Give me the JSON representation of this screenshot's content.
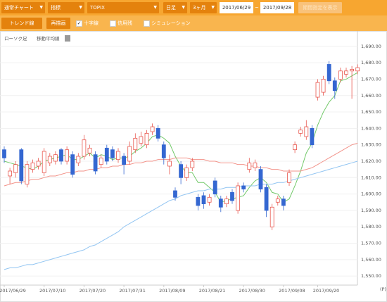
{
  "toolbar": {
    "chart_type": "通常チャート",
    "indicator": "指標",
    "symbol": "TOPIX",
    "period": "日足",
    "range": "3ヶ月",
    "date_from": "2017/06/29",
    "date_sep": "~",
    "date_to": "2017/09/28",
    "apply": "期間指定を表示"
  },
  "toolbar2": {
    "trend": "トレンド線",
    "redraw": "再描画",
    "options": [
      {
        "label": "十字線",
        "checked": true
      },
      {
        "label": "信用残",
        "checked": false
      },
      {
        "label": "シミュレーション",
        "checked": false
      }
    ]
  },
  "chart_data": {
    "type": "candlestick",
    "legend": [
      "ローソク足",
      "移動平均線"
    ],
    "unit_label": "(P)",
    "categories": [
      "2017/06/29",
      null,
      null,
      null,
      null,
      null,
      null,
      "2017/07/10",
      null,
      null,
      null,
      null,
      null,
      null,
      "2017/07/20",
      null,
      null,
      null,
      null,
      null,
      null,
      "2017/07/31",
      null,
      null,
      null,
      null,
      null,
      null,
      "2017/08/09",
      null,
      null,
      null,
      null,
      null,
      null,
      "2017/08/21",
      null,
      null,
      null,
      null,
      null,
      null,
      "2017/08/30",
      null,
      null,
      null,
      null,
      null,
      null,
      "2017/09/08",
      null,
      null,
      null,
      null,
      null,
      "2017/09/20",
      null,
      null,
      null,
      null,
      null,
      null,
      null
    ],
    "open": [
      1627,
      1611,
      1613,
      1627,
      1606,
      1615,
      1617,
      1613,
      1619,
      1620,
      1627,
      1620,
      1624,
      1619,
      1623,
      1625,
      1624,
      1618,
      1628,
      1627,
      1621,
      1623,
      1620,
      1627,
      1631,
      1630,
      1638,
      1640,
      1630,
      1617,
      1602,
      1618,
      1610,
      1616,
      1598,
      1599,
      1595,
      1608,
      1597,
      1594,
      1601,
      1590,
      1605,
      1615,
      1616,
      1615,
      1604,
      1580,
      1595,
      1597,
      1607,
      1627,
      1637,
      1635,
      1640,
      1659,
      1662,
      1679,
      1669,
      1670,
      1673,
      1675,
      1675
    ],
    "high": [
      1629,
      1616,
      1620,
      1628,
      1620,
      1621,
      1622,
      1628,
      1625,
      1626,
      1628,
      1629,
      1626,
      1625,
      1636,
      1630,
      1626,
      1624,
      1630,
      1629,
      1628,
      1625,
      1632,
      1637,
      1638,
      1639,
      1643,
      1642,
      1632,
      1624,
      1604,
      1620,
      1618,
      1622,
      1600,
      1601,
      1600,
      1610,
      1599,
      1599,
      1603,
      1607,
      1607,
      1622,
      1621,
      1617,
      1606,
      1594,
      1599,
      1599,
      1615,
      1632,
      1641,
      1645,
      1642,
      1670,
      1672,
      1681,
      1671,
      1677,
      1677,
      1678,
      1679
    ],
    "low": [
      1619,
      1606,
      1610,
      1606,
      1604,
      1613,
      1615,
      1611,
      1617,
      1618,
      1618,
      1618,
      1610,
      1617,
      1621,
      1623,
      1612,
      1616,
      1618,
      1620,
      1619,
      1612,
      1618,
      1625,
      1629,
      1628,
      1636,
      1632,
      1618,
      1612,
      1596,
      1606,
      1608,
      1614,
      1590,
      1591,
      1593,
      1598,
      1589,
      1592,
      1594,
      1588,
      1601,
      1613,
      1614,
      1601,
      1586,
      1578,
      1593,
      1590,
      1605,
      1625,
      1635,
      1633,
      1628,
      1657,
      1660,
      1667,
      1658,
      1668,
      1671,
      1658,
      1673
    ],
    "close": [
      1622,
      1614,
      1618,
      1608,
      1618,
      1619,
      1620,
      1626,
      1623,
      1624,
      1620,
      1627,
      1612,
      1623,
      1633,
      1628,
      1614,
      1622,
      1620,
      1622,
      1626,
      1618,
      1629,
      1634,
      1635,
      1637,
      1641,
      1634,
      1622,
      1620,
      1598,
      1610,
      1616,
      1620,
      1593,
      1594,
      1598,
      1600,
      1592,
      1597,
      1596,
      1605,
      1603,
      1619,
      1619,
      1603,
      1590,
      1592,
      1597,
      1593,
      1613,
      1630,
      1639,
      1641,
      1630,
      1668,
      1670,
      1669,
      1663,
      1675,
      1675,
      1676,
      1677
    ],
    "up_color": "#e8574e",
    "down_color": "#3467d1",
    "series": [
      {
        "color": "#73c96a",
        "values": [
          1620,
          1619,
          1618,
          1617,
          1616,
          1615,
          1617,
          1620,
          1621,
          1622,
          1623,
          1624,
          1621,
          1621,
          1623,
          1625,
          1622,
          1624,
          1623,
          1621,
          1622,
          1622,
          1623,
          1626,
          1628,
          1631,
          1635,
          1636,
          1634,
          1631,
          1623,
          1617,
          1613,
          1613,
          1607,
          1607,
          1604,
          1601,
          1595,
          1596,
          1597,
          1598,
          1599,
          1604,
          1608,
          1610,
          1607,
          1601,
          1600,
          1595,
          1597,
          1605,
          1614,
          1625,
          1631,
          1642,
          1650,
          1656,
          1660,
          1669,
          1670,
          1672,
          1674
        ]
      },
      {
        "color": "#f2938a",
        "values": [
          1605,
          1606,
          1607,
          1607,
          1608,
          1609,
          1609,
          1610,
          1611,
          1611,
          1612,
          1613,
          1613,
          1614,
          1614,
          1615,
          1615,
          1616,
          1616,
          1617,
          1617,
          1618,
          1618,
          1619,
          1619,
          1620,
          1620,
          1621,
          1621,
          1621,
          1622,
          1622,
          1622,
          1621,
          1621,
          1621,
          1620,
          1620,
          1619,
          1619,
          1619,
          1618,
          1618,
          1617,
          1617,
          1616,
          1616,
          1615,
          1615,
          1614,
          1614,
          1614,
          1614,
          1615,
          1616,
          1618,
          1620,
          1622,
          1624,
          1626,
          1628,
          1630,
          1631
        ]
      },
      {
        "color": "#92c5f2",
        "values": [
          1554,
          1555,
          1555,
          1556,
          1557,
          1557,
          1558,
          1559,
          1560,
          1561,
          1562,
          1563,
          1564,
          1565,
          1566,
          1568,
          1569,
          1571,
          1573,
          1575,
          1577,
          1580,
          1582,
          1584,
          1586,
          1588,
          1590,
          1592,
          1594,
          1596,
          1597,
          1599,
          1600,
          1601,
          1602,
          1602,
          1603,
          1603,
          1603,
          1604,
          1604,
          1604,
          1605,
          1605,
          1605,
          1606,
          1606,
          1606,
          1607,
          1607,
          1608,
          1609,
          1610,
          1611,
          1612,
          1613,
          1614,
          1615,
          1616,
          1617,
          1618,
          1619,
          1620
        ]
      }
    ],
    "ylim": [
      1544.5,
      1698.5
    ],
    "yticks": [
      {
        "value": 1550,
        "label": "1,550.00"
      },
      {
        "value": 1560,
        "label": "1,560.00"
      },
      {
        "value": 1570,
        "label": "1,570.00"
      },
      {
        "value": 1580,
        "label": "1,580.00"
      },
      {
        "value": 1590,
        "label": "1,590.00"
      },
      {
        "value": 1600,
        "label": "1,600.00"
      },
      {
        "value": 1610,
        "label": "1,610.00"
      },
      {
        "value": 1620,
        "label": "1,620.00"
      },
      {
        "value": 1630,
        "label": "1,630.00"
      },
      {
        "value": 1640,
        "label": "1,640.00"
      },
      {
        "value": 1650,
        "label": "1,650.00"
      },
      {
        "value": 1660,
        "label": "1,660.00"
      },
      {
        "value": 1670,
        "label": "1,670.00"
      },
      {
        "value": 1680,
        "label": "1,680.00"
      },
      {
        "value": 1690,
        "label": "1,690.00"
      }
    ],
    "grid": true
  }
}
